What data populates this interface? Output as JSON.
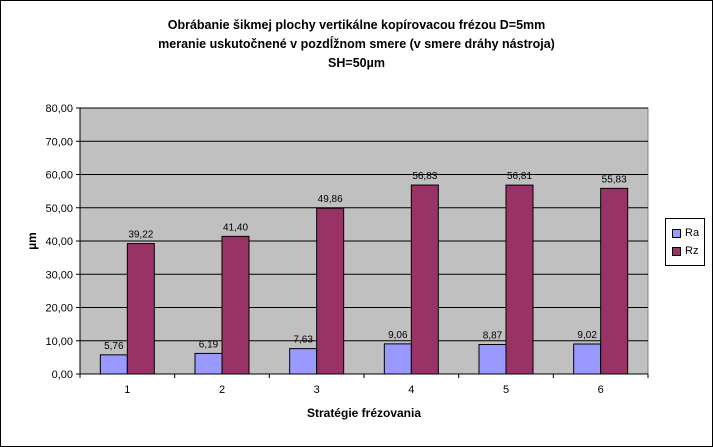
{
  "chart_data": {
    "type": "bar",
    "title_lines": [
      "Obrábanie šikmej plochy vertikálne kopírovacou frézou D=5mm",
      "meranie uskutočnené v pozdĺžnom smere (v smere dráhy nástroja)",
      "SH=50µm"
    ],
    "xlabel": "Stratégie frézovania",
    "ylabel": "µm",
    "categories": [
      "1",
      "2",
      "3",
      "4",
      "5",
      "6"
    ],
    "ylim": [
      0,
      80
    ],
    "yticks": [
      "0,00",
      "10,00",
      "20,00",
      "30,00",
      "40,00",
      "50,00",
      "60,00",
      "70,00",
      "80,00"
    ],
    "grid": true,
    "legend_position": "right",
    "series": [
      {
        "name": "Ra",
        "color": "#9999ff",
        "values": [
          5.76,
          6.19,
          7.63,
          9.06,
          8.87,
          9.02
        ],
        "labels": [
          "5,76",
          "6,19",
          "7,63",
          "9,06",
          "8,87",
          "9,02"
        ]
      },
      {
        "name": "Rz",
        "color": "#993366",
        "values": [
          39.22,
          41.4,
          49.86,
          56.83,
          56.81,
          55.83
        ],
        "labels": [
          "39,22",
          "41,40",
          "49,86",
          "56,83",
          "56,81",
          "55,83"
        ]
      }
    ],
    "plot_background": "#c0c0c0"
  }
}
